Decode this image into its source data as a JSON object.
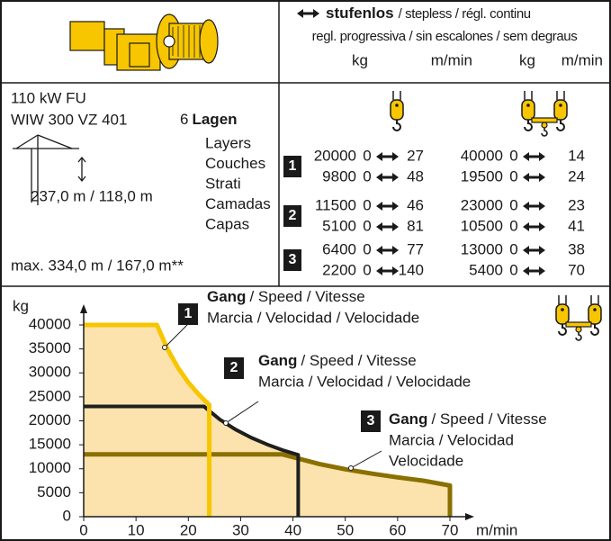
{
  "header": {
    "stepless": "stufenlos",
    "stepless_translations": "/ stepless / régl. continu",
    "translations_line2": "regl. progressiva / sin escalones / sem degraus",
    "units": [
      "kg",
      "m/min",
      "kg",
      "m/min"
    ]
  },
  "drive": {
    "power": "110 kW FU",
    "model": "WIW 300 VZ 401",
    "layers_count": "6",
    "layers_label": "Lagen",
    "layers_translations": [
      "Layers",
      "Couches",
      "Strati",
      "Camadas",
      "Capas"
    ],
    "rope_length": "237,0 m / 118,0 m",
    "max_rope_length": "max. 334,0 m / 167,0 m**"
  },
  "speed_table": {
    "gears": [
      {
        "gear": "1",
        "rows": [
          [
            "20000",
            "0",
            "27",
            "40000",
            "0",
            "14"
          ],
          [
            "9800",
            "0",
            "48",
            "19500",
            "0",
            "24"
          ]
        ]
      },
      {
        "gear": "2",
        "rows": [
          [
            "11500",
            "0",
            "46",
            "23000",
            "0",
            "23"
          ],
          [
            "5100",
            "0",
            "81",
            "10500",
            "0",
            "41"
          ]
        ]
      },
      {
        "gear": "3",
        "rows": [
          [
            "6400",
            "0",
            "77",
            "13000",
            "0",
            "38"
          ],
          [
            "2200",
            "0",
            "140",
            "5400",
            "0",
            "70"
          ]
        ]
      }
    ]
  },
  "chart_data": {
    "type": "line",
    "xlabel": "m/min",
    "ylabel": "kg",
    "xlim": [
      0,
      70
    ],
    "xticks": [
      0,
      10,
      20,
      30,
      40,
      50,
      60,
      70
    ],
    "ylim": [
      0,
      40000
    ],
    "yticks": [
      0,
      5000,
      10000,
      15000,
      20000,
      25000,
      30000,
      35000,
      40000
    ],
    "area_color": "#fce3ad",
    "series": [
      {
        "color": "#f7c600",
        "x": [
          0,
          14,
          16,
          18,
          20,
          22,
          24,
          24
        ],
        "values": [
          40000,
          40000,
          35000,
          31100,
          28000,
          25500,
          23300,
          0
        ]
      },
      {
        "color": "#1e1e1e",
        "x": [
          0,
          23,
          26,
          29,
          32,
          35,
          38,
          41,
          41
        ],
        "values": [
          23000,
          23000,
          20300,
          18200,
          16500,
          15100,
          13900,
          12900,
          0
        ]
      },
      {
        "color": "#8a7000",
        "x": [
          0,
          38,
          45,
          50,
          55,
          60,
          65,
          70,
          70
        ],
        "values": [
          13000,
          13000,
          11000,
          9900,
          9000,
          8200,
          7500,
          6500,
          0
        ]
      }
    ],
    "annotations": [
      {
        "gear": "1",
        "bold": "Gang",
        "lines": [
          "/ Speed / Vitesse",
          "Marcia / Velocidad / Velocidade"
        ]
      },
      {
        "gear": "2",
        "bold": "Gang",
        "lines": [
          "/ Speed / Vitesse",
          "Marcia / Velocidad / Velocidade"
        ]
      },
      {
        "gear": "3",
        "bold": "Gang",
        "lines": [
          "/ Speed / Vitesse",
          "Marcia / Velocidad",
          "Velocidade"
        ]
      }
    ]
  }
}
